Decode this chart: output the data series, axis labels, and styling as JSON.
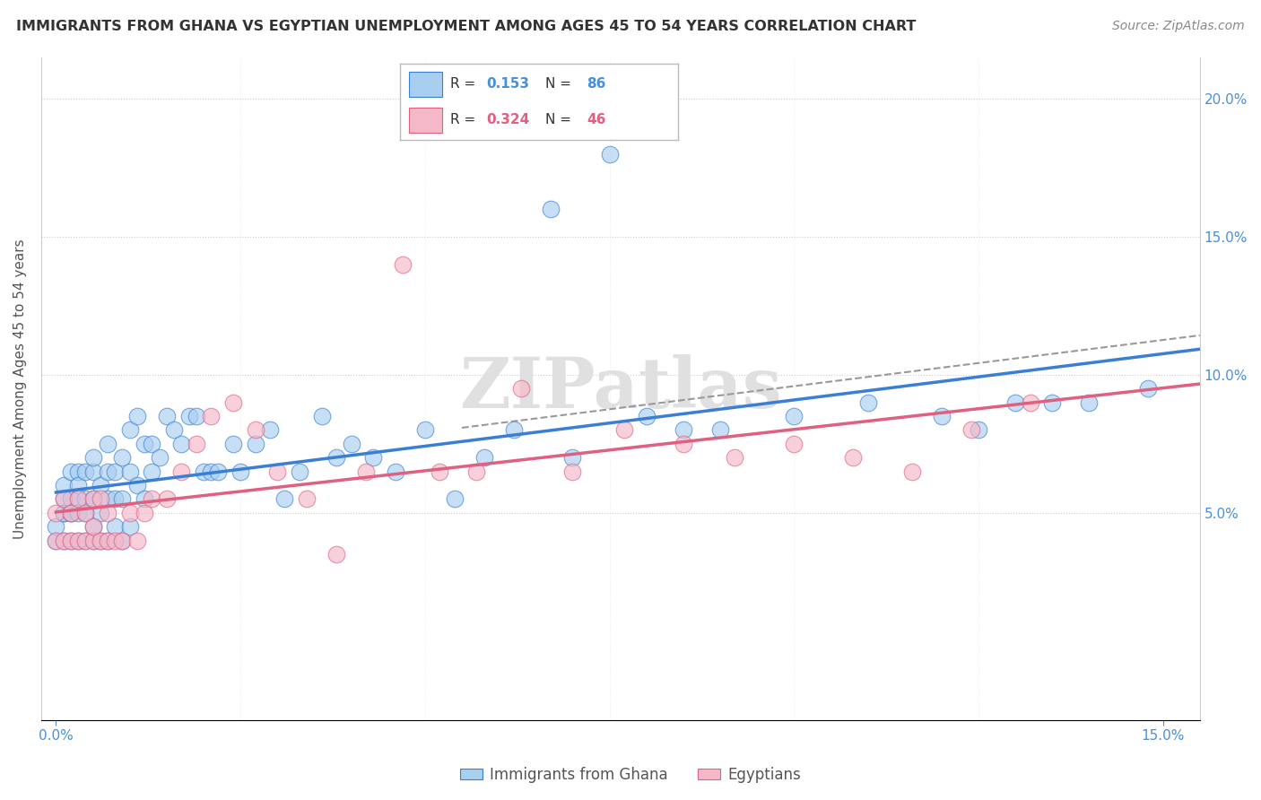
{
  "title": "IMMIGRANTS FROM GHANA VS EGYPTIAN UNEMPLOYMENT AMONG AGES 45 TO 54 YEARS CORRELATION CHART",
  "source": "Source: ZipAtlas.com",
  "ylabel": "Unemployment Among Ages 45 to 54 years",
  "xlim": [
    -0.002,
    0.155
  ],
  "ylim": [
    -0.025,
    0.215
  ],
  "ghana_color": "#a8cef0",
  "ghana_line_color": "#3a7fd4",
  "egypt_color": "#f5b8c8",
  "egypt_line_color": "#e06080",
  "ghana_R": 0.153,
  "ghana_N": 86,
  "egypt_R": 0.324,
  "egypt_N": 46,
  "watermark": "ZIPatlas",
  "ghana_scatter_x": [
    0.0,
    0.0,
    0.001,
    0.001,
    0.001,
    0.001,
    0.001,
    0.002,
    0.002,
    0.002,
    0.002,
    0.002,
    0.003,
    0.003,
    0.003,
    0.003,
    0.003,
    0.004,
    0.004,
    0.004,
    0.004,
    0.005,
    0.005,
    0.005,
    0.005,
    0.005,
    0.006,
    0.006,
    0.006,
    0.007,
    0.007,
    0.007,
    0.007,
    0.008,
    0.008,
    0.008,
    0.009,
    0.009,
    0.009,
    0.01,
    0.01,
    0.01,
    0.011,
    0.011,
    0.012,
    0.012,
    0.013,
    0.013,
    0.014,
    0.015,
    0.016,
    0.017,
    0.018,
    0.019,
    0.02,
    0.021,
    0.022,
    0.024,
    0.025,
    0.027,
    0.029,
    0.031,
    0.033,
    0.036,
    0.038,
    0.04,
    0.043,
    0.046,
    0.05,
    0.054,
    0.058,
    0.062,
    0.067,
    0.07,
    0.075,
    0.08,
    0.085,
    0.09,
    0.1,
    0.11,
    0.12,
    0.125,
    0.13,
    0.135,
    0.14,
    0.148
  ],
  "ghana_scatter_y": [
    0.04,
    0.045,
    0.06,
    0.055,
    0.05,
    0.05,
    0.04,
    0.05,
    0.065,
    0.055,
    0.05,
    0.04,
    0.04,
    0.055,
    0.065,
    0.06,
    0.05,
    0.04,
    0.05,
    0.055,
    0.065,
    0.04,
    0.045,
    0.055,
    0.065,
    0.07,
    0.04,
    0.05,
    0.06,
    0.04,
    0.055,
    0.065,
    0.075,
    0.045,
    0.055,
    0.065,
    0.04,
    0.055,
    0.07,
    0.045,
    0.065,
    0.08,
    0.06,
    0.085,
    0.055,
    0.075,
    0.065,
    0.075,
    0.07,
    0.085,
    0.08,
    0.075,
    0.085,
    0.085,
    0.065,
    0.065,
    0.065,
    0.075,
    0.065,
    0.075,
    0.08,
    0.055,
    0.065,
    0.085,
    0.07,
    0.075,
    0.07,
    0.065,
    0.08,
    0.055,
    0.07,
    0.08,
    0.16,
    0.07,
    0.18,
    0.085,
    0.08,
    0.08,
    0.085,
    0.09,
    0.085,
    0.08,
    0.09,
    0.09,
    0.09,
    0.095
  ],
  "egypt_scatter_x": [
    0.0,
    0.0,
    0.001,
    0.001,
    0.002,
    0.002,
    0.003,
    0.003,
    0.004,
    0.004,
    0.005,
    0.005,
    0.005,
    0.006,
    0.006,
    0.007,
    0.007,
    0.008,
    0.009,
    0.01,
    0.011,
    0.012,
    0.013,
    0.015,
    0.017,
    0.019,
    0.021,
    0.024,
    0.027,
    0.03,
    0.034,
    0.038,
    0.042,
    0.047,
    0.052,
    0.057,
    0.063,
    0.07,
    0.077,
    0.085,
    0.092,
    0.1,
    0.108,
    0.116,
    0.124,
    0.132
  ],
  "egypt_scatter_y": [
    0.04,
    0.05,
    0.04,
    0.055,
    0.04,
    0.05,
    0.04,
    0.055,
    0.04,
    0.05,
    0.04,
    0.045,
    0.055,
    0.04,
    0.055,
    0.04,
    0.05,
    0.04,
    0.04,
    0.05,
    0.04,
    0.05,
    0.055,
    0.055,
    0.065,
    0.075,
    0.085,
    0.09,
    0.08,
    0.065,
    0.055,
    0.035,
    0.065,
    0.14,
    0.065,
    0.065,
    0.095,
    0.065,
    0.08,
    0.075,
    0.07,
    0.075,
    0.07,
    0.065,
    0.08,
    0.09
  ]
}
